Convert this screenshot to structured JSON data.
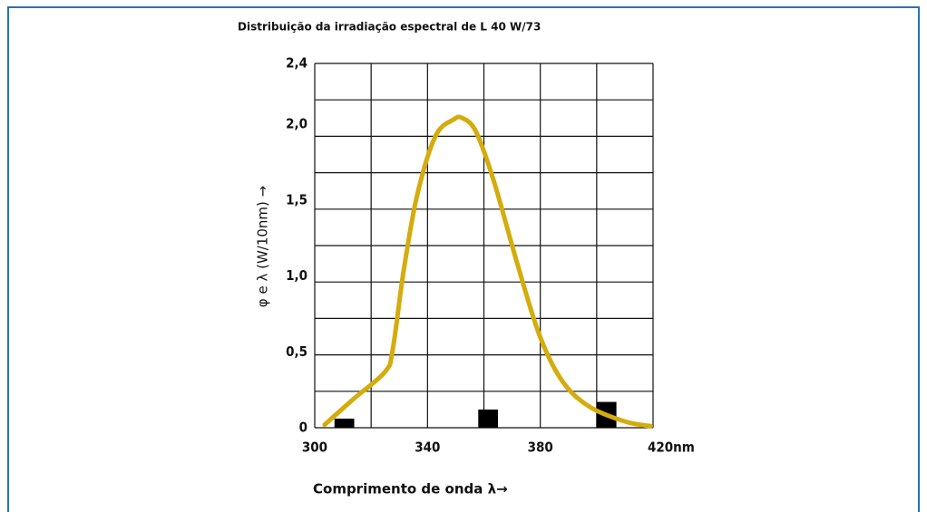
{
  "chart_data": {
    "type": "line",
    "title": "Distribuição da irradiação espectral de L 40 W/73",
    "y_label": "φ e λ (W/10nm) →",
    "x_label": "Comprimento de onda  λ→",
    "xlim": [
      300,
      420
    ],
    "ylim": [
      0,
      2.4
    ],
    "xticks": [
      300,
      340,
      380,
      {
        "value": 420,
        "label": "420nm"
      }
    ],
    "yticks": [
      0,
      {
        "value": 0.5,
        "label": "0,5"
      },
      {
        "value": 1,
        "label": "1,0"
      },
      {
        "value": 1.5,
        "label": "1,5"
      },
      {
        "value": 2,
        "label": "2,0"
      },
      {
        "value": 2.4,
        "label": "2,4"
      }
    ],
    "xgrid": [
      300,
      320,
      340,
      360,
      380,
      400,
      420
    ],
    "ygrid": [
      0,
      0.24,
      0.48,
      0.72,
      0.96,
      1.2,
      1.44,
      1.68,
      1.92,
      2.16,
      2.4
    ],
    "series": [
      {
        "color": "#d4ac0d",
        "x": [
          303.5,
          313.8,
          325,
          327.7,
          331.5,
          336.3,
          342.8,
          349.2,
          352.4,
          357.2,
          363.6,
          371.7,
          379.7,
          387.7,
          397.3,
          410.2,
          419.2
        ],
        "values": [
          0.02,
          0.19,
          0.37,
          0.52,
          1.03,
          1.53,
          1.92,
          2.03,
          2.04,
          1.95,
          1.62,
          1.09,
          0.61,
          0.31,
          0.14,
          0.04,
          0.01
        ]
      }
    ],
    "bars": {
      "color": "#000000",
      "x": [
        310.5,
        361.5,
        403.5
      ],
      "values": [
        0.06,
        0.12,
        0.17
      ]
    }
  }
}
